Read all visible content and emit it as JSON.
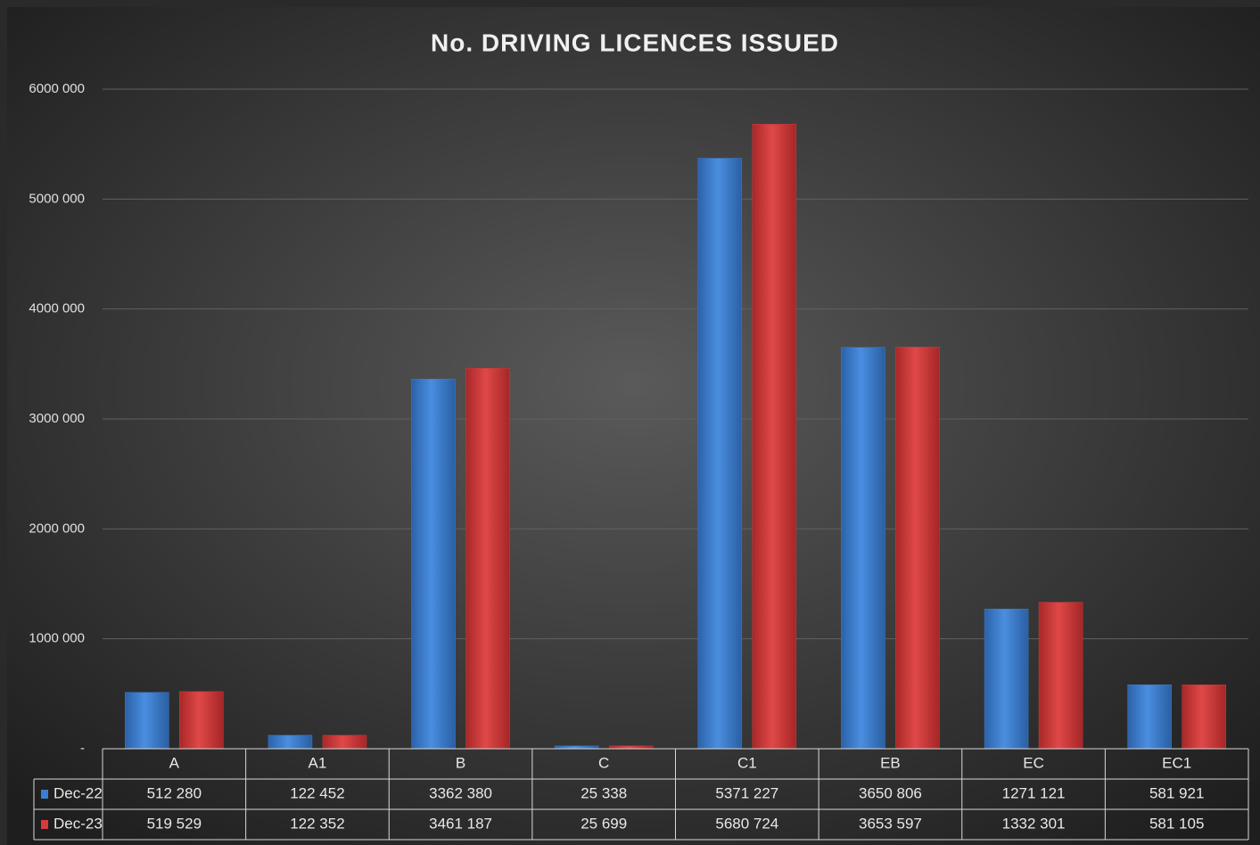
{
  "chart_data": {
    "type": "bar",
    "title": "No. DRIVING LICENCES ISSUED",
    "categories": [
      "A",
      "A1",
      "B",
      "C",
      "C1",
      "EB",
      "EC",
      "EC1"
    ],
    "series": [
      {
        "name": "Dec-22",
        "color": "#3b7fd2",
        "values": [
          512280,
          122452,
          3362380,
          25338,
          5371227,
          3650806,
          1271121,
          581921
        ],
        "value_labels": [
          "512 280",
          "122 452",
          "3362 380",
          "25 338",
          "5371 227",
          "3650 806",
          "1271 121",
          "581 921"
        ]
      },
      {
        "name": "Dec-23",
        "color": "#d63b3b",
        "values": [
          519529,
          122352,
          3461187,
          25699,
          5680724,
          3653597,
          1332301,
          581105
        ],
        "value_labels": [
          "519 529",
          "122 352",
          "3461 187",
          "25 699",
          "5680 724",
          "3653 597",
          "1332 301",
          "581 105"
        ]
      }
    ],
    "ylim": [
      0,
      6000000
    ],
    "yticks": [
      {
        "value": 0,
        "label": "-"
      },
      {
        "value": 1000000,
        "label": "1000 000"
      },
      {
        "value": 2000000,
        "label": "2000 000"
      },
      {
        "value": 3000000,
        "label": "3000 000"
      },
      {
        "value": 4000000,
        "label": "4000 000"
      },
      {
        "value": 5000000,
        "label": "5000 000"
      },
      {
        "value": 6000000,
        "label": "6000 000"
      }
    ],
    "grid": true
  }
}
